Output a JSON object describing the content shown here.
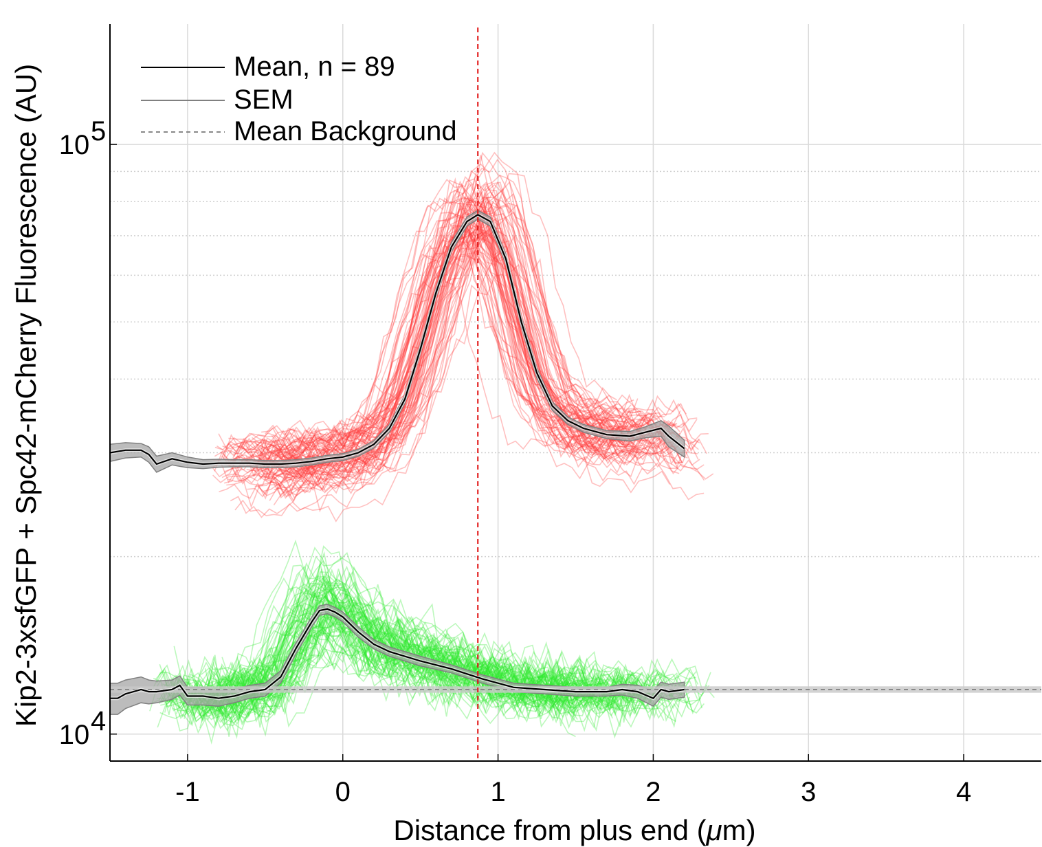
{
  "chart_data": {
    "type": "line",
    "title": "",
    "xlabel": "Distance from plus end (",
    "xlabel_mu": "μ",
    "xlabel_end": "m)",
    "ylabel": "Kip2-3xsfGFP + Spc42-mCherry Fluorescence (AU)",
    "xlim": [
      -1.5,
      4.5
    ],
    "ylim": [
      9000,
      160000
    ],
    "yscale": "log",
    "grid": true,
    "legend_position": "top-left",
    "xticks": [
      {
        "value": -1,
        "label": "-1"
      },
      {
        "value": 0,
        "label": "0"
      },
      {
        "value": 1,
        "label": "1"
      },
      {
        "value": 2,
        "label": "2"
      },
      {
        "value": 3,
        "label": "3"
      },
      {
        "value": 4,
        "label": "4"
      }
    ],
    "yticks": [
      {
        "value": 10000,
        "base": "10",
        "exp": "4"
      },
      {
        "value": 100000,
        "base": "10",
        "exp": "5"
      }
    ],
    "legend": [
      {
        "label": "Mean, n = 89",
        "style": "mean"
      },
      {
        "label": "SEM",
        "style": "sem"
      },
      {
        "label": "Mean Background",
        "style": "background"
      }
    ],
    "vline": {
      "x": 0.87,
      "color": "#e01010"
    },
    "background_level": 11900,
    "background_band": [
      11750,
      12050
    ],
    "colors": {
      "red_traces": "#ff3a3a",
      "green_traces": "#2ee82e",
      "mean": "#000000",
      "sem_fill": "#a6a6a6",
      "sem_edge": "#808080",
      "background": "#888888"
    },
    "n_traces": 89,
    "series": [
      {
        "name": "Spc42-mCherry mean",
        "x": [
          -1.5,
          -1.4,
          -1.3,
          -1.25,
          -1.2,
          -1.1,
          -1.0,
          -0.9,
          -0.8,
          -0.7,
          -0.6,
          -0.5,
          -0.4,
          -0.3,
          -0.2,
          -0.1,
          0.0,
          0.1,
          0.2,
          0.3,
          0.4,
          0.5,
          0.6,
          0.7,
          0.8,
          0.87,
          0.95,
          1.05,
          1.15,
          1.25,
          1.35,
          1.45,
          1.55,
          1.7,
          1.85,
          1.95,
          2.05,
          2.1,
          2.2
        ],
        "y": [
          30000,
          30300,
          30300,
          29800,
          28700,
          29300,
          28900,
          28700,
          28800,
          28800,
          28800,
          28700,
          28700,
          28800,
          29000,
          29300,
          29500,
          30000,
          31000,
          33000,
          37000,
          45000,
          56000,
          67000,
          74000,
          76000,
          74000,
          64000,
          50000,
          41000,
          36000,
          34000,
          33000,
          32200,
          32000,
          32500,
          33000,
          32000,
          30500
        ],
        "sem": [
          1000,
          900,
          800,
          900,
          900,
          700,
          600,
          500,
          450,
          400,
          400,
          400,
          400,
          400,
          400,
          400,
          400,
          400,
          450,
          500,
          600,
          800,
          1000,
          1200,
          1300,
          1300,
          1300,
          1200,
          1000,
          800,
          600,
          500,
          500,
          500,
          600,
          700,
          1000,
          1300,
          1000
        ]
      },
      {
        "name": "Kip2-3xsfGFP mean",
        "x": [
          -1.5,
          -1.45,
          -1.4,
          -1.3,
          -1.25,
          -1.2,
          -1.1,
          -1.05,
          -1.0,
          -0.9,
          -0.8,
          -0.7,
          -0.6,
          -0.5,
          -0.4,
          -0.3,
          -0.2,
          -0.15,
          -0.1,
          -0.05,
          0.0,
          0.1,
          0.2,
          0.3,
          0.5,
          0.7,
          0.9,
          1.1,
          1.3,
          1.5,
          1.7,
          1.8,
          1.9,
          2.0,
          2.05,
          2.1,
          2.2
        ],
        "y": [
          11500,
          11500,
          11700,
          11900,
          11800,
          11800,
          11900,
          12100,
          11600,
          11600,
          11500,
          11600,
          11800,
          11900,
          12500,
          14000,
          15500,
          16200,
          16300,
          16100,
          15800,
          14900,
          14200,
          13800,
          13300,
          12900,
          12400,
          12000,
          11900,
          11800,
          11800,
          11900,
          11800,
          11500,
          11900,
          11800,
          11900
        ]
      }
    ],
    "sem_green": [
      700,
      700,
      650,
      600,
      550,
      500,
      450,
      450,
      400,
      400,
      350,
      300,
      300,
      300,
      300,
      300,
      300,
      300,
      300,
      300,
      300,
      300,
      250,
      250,
      250,
      200,
      200,
      200,
      200,
      200,
      200,
      250,
      300,
      350,
      350,
      350,
      350
    ]
  }
}
